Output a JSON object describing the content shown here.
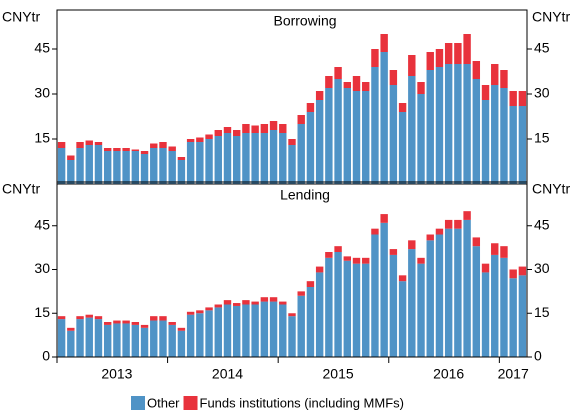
{
  "chart_data": [
    {
      "type": "bar",
      "stacked": true,
      "title": "Borrowing",
      "ylabel": "CNYtr",
      "ylim": [
        0,
        58
      ],
      "yticks": [
        15,
        30,
        45
      ],
      "series": [
        {
          "name": "Other",
          "color": "#4f93c6",
          "values": [
            12,
            8,
            12,
            13,
            13,
            11,
            11,
            11,
            11,
            10,
            12,
            12,
            11,
            8,
            14,
            14,
            15,
            16,
            17,
            16,
            17,
            17,
            17,
            18,
            17,
            13,
            20,
            24,
            28,
            32,
            35,
            32,
            31,
            31,
            39,
            44,
            33,
            24,
            36,
            30,
            38,
            39,
            40,
            40,
            40,
            35,
            28,
            33,
            32,
            26,
            26
          ]
        },
        {
          "name": "Funds institutions (including MMFs)",
          "color": "#e8323c",
          "values": [
            2,
            1.5,
            2,
            1.5,
            1,
            1,
            1,
            1,
            0.5,
            1,
            1.5,
            2,
            1.5,
            1,
            1,
            1.5,
            1.5,
            2,
            2,
            2,
            3,
            2.5,
            3,
            3,
            3,
            2,
            3,
            3,
            3,
            4,
            4,
            2,
            5,
            3,
            6,
            6,
            5,
            3,
            7,
            4,
            6,
            6,
            7,
            7,
            10,
            6,
            5,
            7,
            6,
            5,
            5
          ]
        }
      ]
    },
    {
      "type": "bar",
      "stacked": true,
      "title": "Lending",
      "ylabel": "CNYtr",
      "ylim": [
        0,
        60
      ],
      "yticks": [
        0,
        15,
        30,
        45
      ],
      "categories": [
        null,
        null,
        null,
        null,
        null,
        null,
        "2013",
        null,
        null,
        null,
        null,
        null,
        null,
        null,
        null,
        null,
        null,
        null,
        "2014",
        null,
        null,
        null,
        null,
        null,
        null,
        null,
        null,
        null,
        null,
        null,
        "2015",
        null,
        null,
        null,
        null,
        null,
        null,
        null,
        null,
        null,
        null,
        null,
        "2016",
        null,
        null,
        null,
        null,
        null,
        null,
        "2017",
        null
      ],
      "series": [
        {
          "name": "Other",
          "color": "#4f93c6",
          "values": [
            13,
            9,
            13,
            13.5,
            13,
            11,
            11.5,
            11.5,
            11,
            10,
            12.5,
            12.5,
            11,
            9,
            14.5,
            15,
            16,
            17,
            18,
            17.5,
            18,
            18,
            19,
            19,
            18,
            14,
            21,
            24,
            29,
            34,
            36,
            33,
            32,
            32,
            42,
            46,
            35,
            26,
            37,
            32,
            40,
            42,
            44,
            44,
            47,
            38,
            29,
            35,
            34,
            27,
            28
          ]
        },
        {
          "name": "Funds institutions (including MMFs)",
          "color": "#e8323c",
          "values": [
            1,
            1,
            1,
            1,
            1,
            1,
            1,
            1,
            1,
            1,
            1.5,
            1.5,
            1,
            1,
            1,
            1,
            1,
            1,
            1.5,
            1,
            1.5,
            1,
            1.5,
            1.5,
            1,
            1,
            1.5,
            2,
            2,
            2,
            2,
            1.5,
            2,
            2,
            2,
            3,
            2,
            2,
            3,
            2,
            2,
            2,
            3,
            3,
            3,
            3,
            3,
            4,
            4,
            3,
            3
          ]
        }
      ]
    }
  ]
}
